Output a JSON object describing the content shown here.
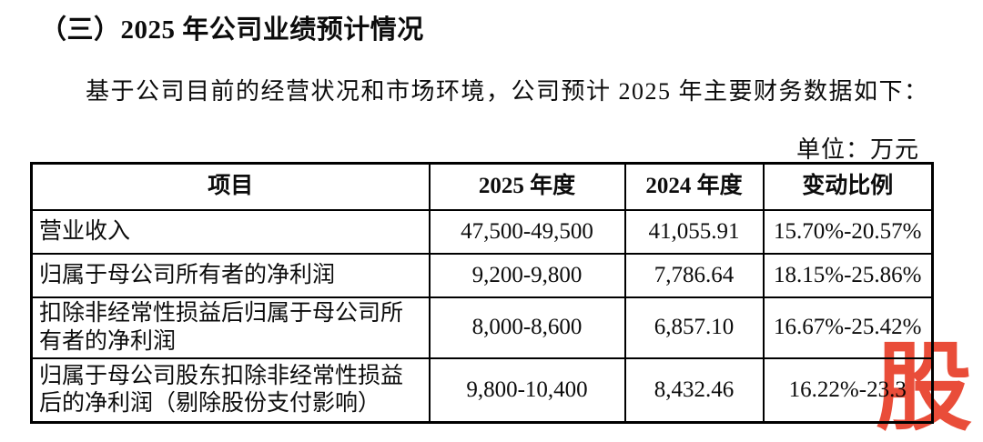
{
  "document": {
    "section_title": "（三）2025 年公司业绩预计情况",
    "intro": "基于公司目前的经营状况和市场环境，公司预计 2025 年主要财务数据如下：",
    "unit_note": "单位：万元"
  },
  "table": {
    "headers": [
      "项目",
      "2025 年度",
      "2024 年度",
      "变动比例"
    ],
    "rows": [
      [
        "营业收入",
        "47,500-49,500",
        "41,055.91",
        "15.70%-20.57%"
      ],
      [
        "归属于母公司所有者的净利润",
        "9,200-9,800",
        "7,786.64",
        "18.15%-25.86%"
      ],
      [
        "扣除非经常性损益后归属于母公司所有者的净利润",
        "8,000-8,600",
        "6,857.10",
        "16.67%-25.42%"
      ],
      [
        "归属于母公司股东扣除非经常性损益后的净利润（剔除股份支付影响）",
        "9,800-10,400",
        "8,432.46",
        "16.22%-23.3"
      ]
    ]
  },
  "watermark": {
    "text": "股",
    "color": "#e8432e"
  },
  "colors": {
    "background": "#ffffff",
    "text": "#0c0c0c",
    "table_border": "#000000"
  }
}
